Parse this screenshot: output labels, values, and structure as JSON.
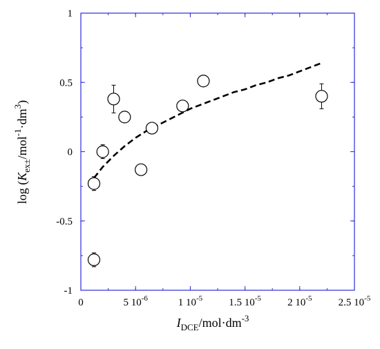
{
  "chart_data": {
    "type": "scatter",
    "xlabel": {
      "main": "I",
      "sub": "DCE",
      "rest": "/mol·dm",
      "sup": "-3"
    },
    "ylabel": {
      "prefix": "log (",
      "main": "K",
      "sub": "ex±",
      "rest": "/mol",
      "sup1": "-1",
      "mid": "·dm",
      "sup2": "3",
      "suffix": ")"
    },
    "xlim": [
      0,
      2.5e-05
    ],
    "ylim": [
      -1,
      1
    ],
    "x_ticks": [
      {
        "value": 0,
        "mantissa": "0",
        "exp": ""
      },
      {
        "value": 5e-06,
        "mantissa": "5 10",
        "exp": "-6"
      },
      {
        "value": 1e-05,
        "mantissa": "1 10",
        "exp": "-5"
      },
      {
        "value": 1.5e-05,
        "mantissa": "1.5 10",
        "exp": "-5"
      },
      {
        "value": 2e-05,
        "mantissa": "2 10",
        "exp": "-5"
      },
      {
        "value": 2.5e-05,
        "mantissa": "2.5 10",
        "exp": "-5"
      }
    ],
    "y_ticks": [
      {
        "value": -1,
        "label": "-1"
      },
      {
        "value": -0.5,
        "label": "-0.5"
      },
      {
        "value": 0,
        "label": "0"
      },
      {
        "value": 0.5,
        "label": "0.5"
      },
      {
        "value": 1,
        "label": "1"
      }
    ],
    "series": [
      {
        "kind": "points",
        "marker": "open-circle",
        "points": [
          {
            "x": 1.2e-06,
            "y": -0.78,
            "err": 0.05
          },
          {
            "x": 1.2e-06,
            "y": -0.23,
            "err": 0.05
          },
          {
            "x": 2e-06,
            "y": 0.0,
            "err": 0.05
          },
          {
            "x": 3e-06,
            "y": 0.38,
            "err": 0.1
          },
          {
            "x": 4e-06,
            "y": 0.25,
            "err": 0
          },
          {
            "x": 5.5e-06,
            "y": -0.13,
            "err": 0
          },
          {
            "x": 6.5e-06,
            "y": 0.17,
            "err": 0
          },
          {
            "x": 9.3e-06,
            "y": 0.33,
            "err": 0
          },
          {
            "x": 1.12e-05,
            "y": 0.51,
            "err": 0
          },
          {
            "x": 2.2e-05,
            "y": 0.4,
            "err": 0.09
          }
        ]
      },
      {
        "kind": "line",
        "style": "dashed",
        "x": [
          1.2e-06,
          2e-06,
          3e-06,
          4e-06,
          5e-06,
          6e-06,
          7e-06,
          8e-06,
          9e-06,
          1e-05,
          1.1e-05,
          1.2e-05,
          1.3e-05,
          1.4e-05,
          1.5e-05,
          1.6e-05,
          1.7e-05,
          1.8e-05,
          1.9e-05,
          2e-05,
          2.1e-05,
          2.2e-05
        ],
        "y": [
          -0.19,
          -0.11,
          -0.03,
          0.04,
          0.1,
          0.15,
          0.19,
          0.23,
          0.27,
          0.31,
          0.34,
          0.37,
          0.4,
          0.43,
          0.45,
          0.48,
          0.5,
          0.53,
          0.55,
          0.58,
          0.61,
          0.64
        ]
      }
    ],
    "grid": false,
    "colors": {
      "frame": "#2b2bd9",
      "marks": "#000000"
    }
  }
}
